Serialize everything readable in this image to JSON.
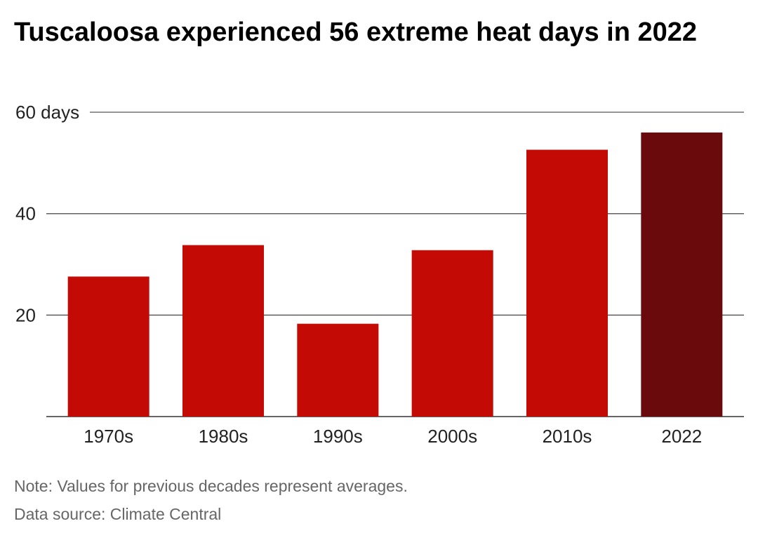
{
  "title": "Tuscaloosa experienced 56 extreme heat days in 2022",
  "note": "Note: Values for previous decades represent averages.",
  "source": "Data source: Climate Central",
  "colors": {
    "bar": "#C30A05",
    "highlight": "#6B0A0C",
    "grid": "#333333",
    "text": "#222222"
  },
  "chart_data": {
    "type": "bar",
    "categories": [
      "1970s",
      "1980s",
      "1990s",
      "2000s",
      "2010s",
      "2022"
    ],
    "values": [
      27.6,
      33.8,
      18.3,
      32.8,
      52.6,
      56
    ],
    "highlight_index": 5,
    "ylim": [
      0,
      60
    ],
    "yticks": [
      20,
      40,
      60
    ],
    "ytick_labels": [
      "20",
      "40",
      "60 days"
    ],
    "grid": true
  }
}
